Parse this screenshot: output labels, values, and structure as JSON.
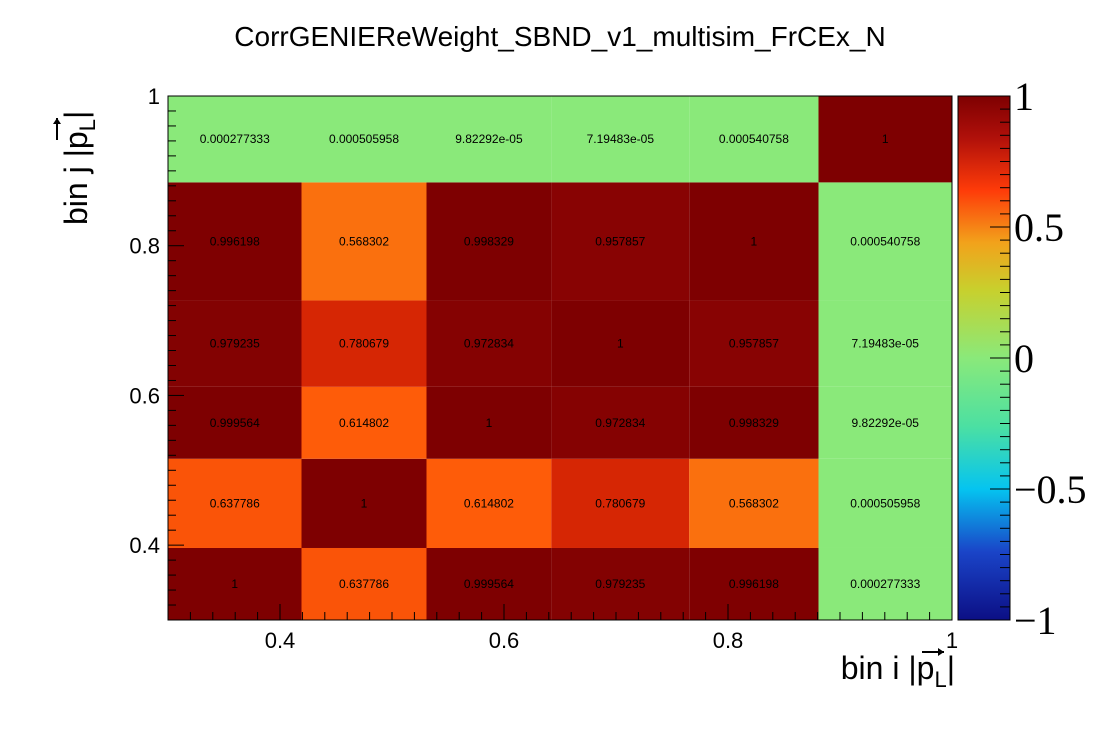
{
  "chart_data": {
    "type": "heatmap",
    "title": "CorrGENIEReWeight_SBND_v1_multisim_FrCEx_N",
    "xlabel": "bin i |p⃗_L|",
    "ylabel": "bin j |p⃗_L|",
    "x_edges": [
      0.3,
      0.4192,
      0.5308,
      0.6423,
      0.7654,
      0.8808,
      1.0
    ],
    "y_edges": [
      0.3,
      0.3962,
      0.5154,
      0.6115,
      0.7269,
      0.8846,
      1.0
    ],
    "xlim": [
      0.3,
      1.0
    ],
    "ylim": [
      0.3,
      1.0
    ],
    "zlim": [
      -1,
      1
    ],
    "x_ticks": [
      "0.4",
      "0.6",
      "0.8",
      "1"
    ],
    "y_ticks": [
      "0.4",
      "0.6",
      "0.8",
      "1"
    ],
    "z_ticks": [
      "−1",
      "−0.5",
      "0",
      "0.5",
      "1"
    ],
    "cells": [
      [
        "1",
        "0.637786",
        "0.999564",
        "0.979235",
        "0.996198",
        "0.000277333"
      ],
      [
        "0.637786",
        "1",
        "0.614802",
        "0.780679",
        "0.568302",
        "0.000505958"
      ],
      [
        "0.999564",
        "0.614802",
        "1",
        "0.972834",
        "0.998329",
        "9.82292e-05"
      ],
      [
        "0.979235",
        "0.780679",
        "0.972834",
        "1",
        "0.957857",
        "7.19483e-05"
      ],
      [
        "0.996198",
        "0.568302",
        "0.998329",
        "0.957857",
        "1",
        "0.000540758"
      ],
      [
        "0.000277333",
        "0.000505958",
        "9.82292e-05",
        "7.19483e-05",
        "0.000540758",
        "1"
      ]
    ]
  }
}
